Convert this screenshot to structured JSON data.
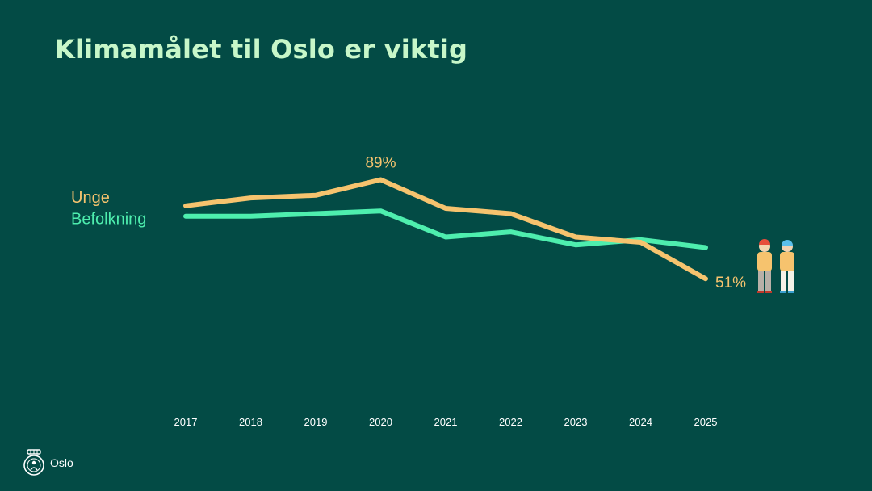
{
  "slide": {
    "title": "Klimamålet til Oslo er viktig",
    "footer_label": "Oslo"
  },
  "colors": {
    "background": "#034b45",
    "unge": "#f6c36e",
    "befolkning": "#4eeeae",
    "title": "#c7f7c9",
    "axis_text": "#ffffff"
  },
  "chart_data": {
    "type": "line",
    "title": "",
    "x": [
      "2017",
      "2018",
      "2019",
      "2020",
      "2021",
      "2022",
      "2023",
      "2024",
      "2025"
    ],
    "ylim": [
      0,
      130
    ],
    "grid": false,
    "legend_position": "left",
    "series": [
      {
        "name": "Unge",
        "values": [
          79,
          82,
          83,
          89,
          78,
          76,
          67,
          65,
          51
        ]
      },
      {
        "name": "Befolkning",
        "values": [
          75,
          75,
          76,
          77,
          67,
          69,
          64,
          66,
          63
        ]
      }
    ],
    "annotations": [
      {
        "series": "Unge",
        "x": "2020",
        "label": "89%"
      },
      {
        "series": "Unge",
        "x": "2025",
        "label": "51%"
      }
    ],
    "people_icon": "two-people-icon"
  }
}
